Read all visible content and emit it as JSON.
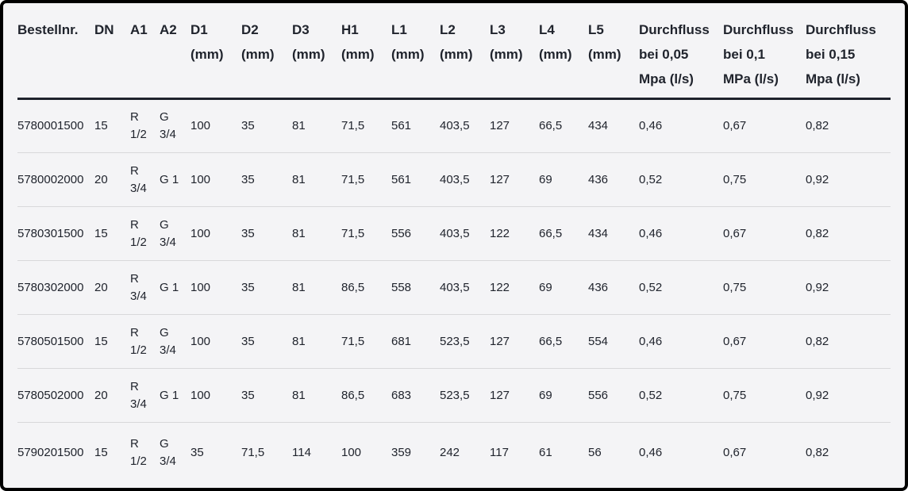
{
  "colors": {
    "frame_border": "#000000",
    "background": "#f4f4f6",
    "text": "#20242d",
    "header_rule": "#1e222c",
    "row_divider": "#d8d8da"
  },
  "table": {
    "columns": [
      {
        "id": "bestellnr",
        "lines": [
          "Bestellnr."
        ]
      },
      {
        "id": "dn",
        "lines": [
          "DN"
        ]
      },
      {
        "id": "a1",
        "lines": [
          "A1"
        ]
      },
      {
        "id": "a2",
        "lines": [
          "A2"
        ]
      },
      {
        "id": "d1",
        "lines": [
          "D1",
          "(mm)"
        ]
      },
      {
        "id": "d2",
        "lines": [
          "D2",
          "(mm)"
        ]
      },
      {
        "id": "d3",
        "lines": [
          "D3",
          "(mm)"
        ]
      },
      {
        "id": "h1",
        "lines": [
          "H1",
          "(mm)"
        ]
      },
      {
        "id": "l1",
        "lines": [
          "L1",
          "(mm)"
        ]
      },
      {
        "id": "l2",
        "lines": [
          "L2",
          "(mm)"
        ]
      },
      {
        "id": "l3",
        "lines": [
          "L3",
          "(mm)"
        ]
      },
      {
        "id": "l4",
        "lines": [
          "L4",
          "(mm)"
        ]
      },
      {
        "id": "l5",
        "lines": [
          "L5",
          "(mm)"
        ]
      },
      {
        "id": "flow-005",
        "lines": [
          "Durchfluss",
          "bei 0,05",
          "Mpa (l/s)"
        ]
      },
      {
        "id": "flow-01",
        "lines": [
          "Durchfluss",
          "bei 0,1",
          "MPa (l/s)"
        ]
      },
      {
        "id": "flow-015",
        "lines": [
          "Durchfluss",
          "bei 0,15",
          "Mpa (l/s)"
        ]
      }
    ],
    "rows": [
      [
        "5780001500",
        "15",
        "R 1/2",
        "G 3/4",
        "100",
        "35",
        "81",
        "71,5",
        "561",
        "403,5",
        "127",
        "66,5",
        "434",
        "0,46",
        "0,67",
        "0,82"
      ],
      [
        "5780002000",
        "20",
        "R 3/4",
        "G 1",
        "100",
        "35",
        "81",
        "71,5",
        "561",
        "403,5",
        "127",
        "69",
        "436",
        "0,52",
        "0,75",
        "0,92"
      ],
      [
        "5780301500",
        "15",
        "R 1/2",
        "G 3/4",
        "100",
        "35",
        "81",
        "71,5",
        "556",
        "403,5",
        "122",
        "66,5",
        "434",
        "0,46",
        "0,67",
        "0,82"
      ],
      [
        "5780302000",
        "20",
        "R 3/4",
        "G 1",
        "100",
        "35",
        "81",
        "86,5",
        "558",
        "403,5",
        "122",
        "69",
        "436",
        "0,52",
        "0,75",
        "0,92"
      ],
      [
        "5780501500",
        "15",
        "R 1/2",
        "G 3/4",
        "100",
        "35",
        "81",
        "71,5",
        "681",
        "523,5",
        "127",
        "66,5",
        "554",
        "0,46",
        "0,67",
        "0,82"
      ],
      [
        "5780502000",
        "20",
        "R 3/4",
        "G 1",
        "100",
        "35",
        "81",
        "86,5",
        "683",
        "523,5",
        "127",
        "69",
        "556",
        "0,52",
        "0,75",
        "0,92"
      ],
      [
        "5790201500",
        "15",
        "R 1/2",
        "G 3/4",
        "35",
        "71,5",
        "114",
        "100",
        "359",
        "242",
        "117",
        "61",
        "56",
        "0,46",
        "0,67",
        "0,82"
      ]
    ]
  }
}
